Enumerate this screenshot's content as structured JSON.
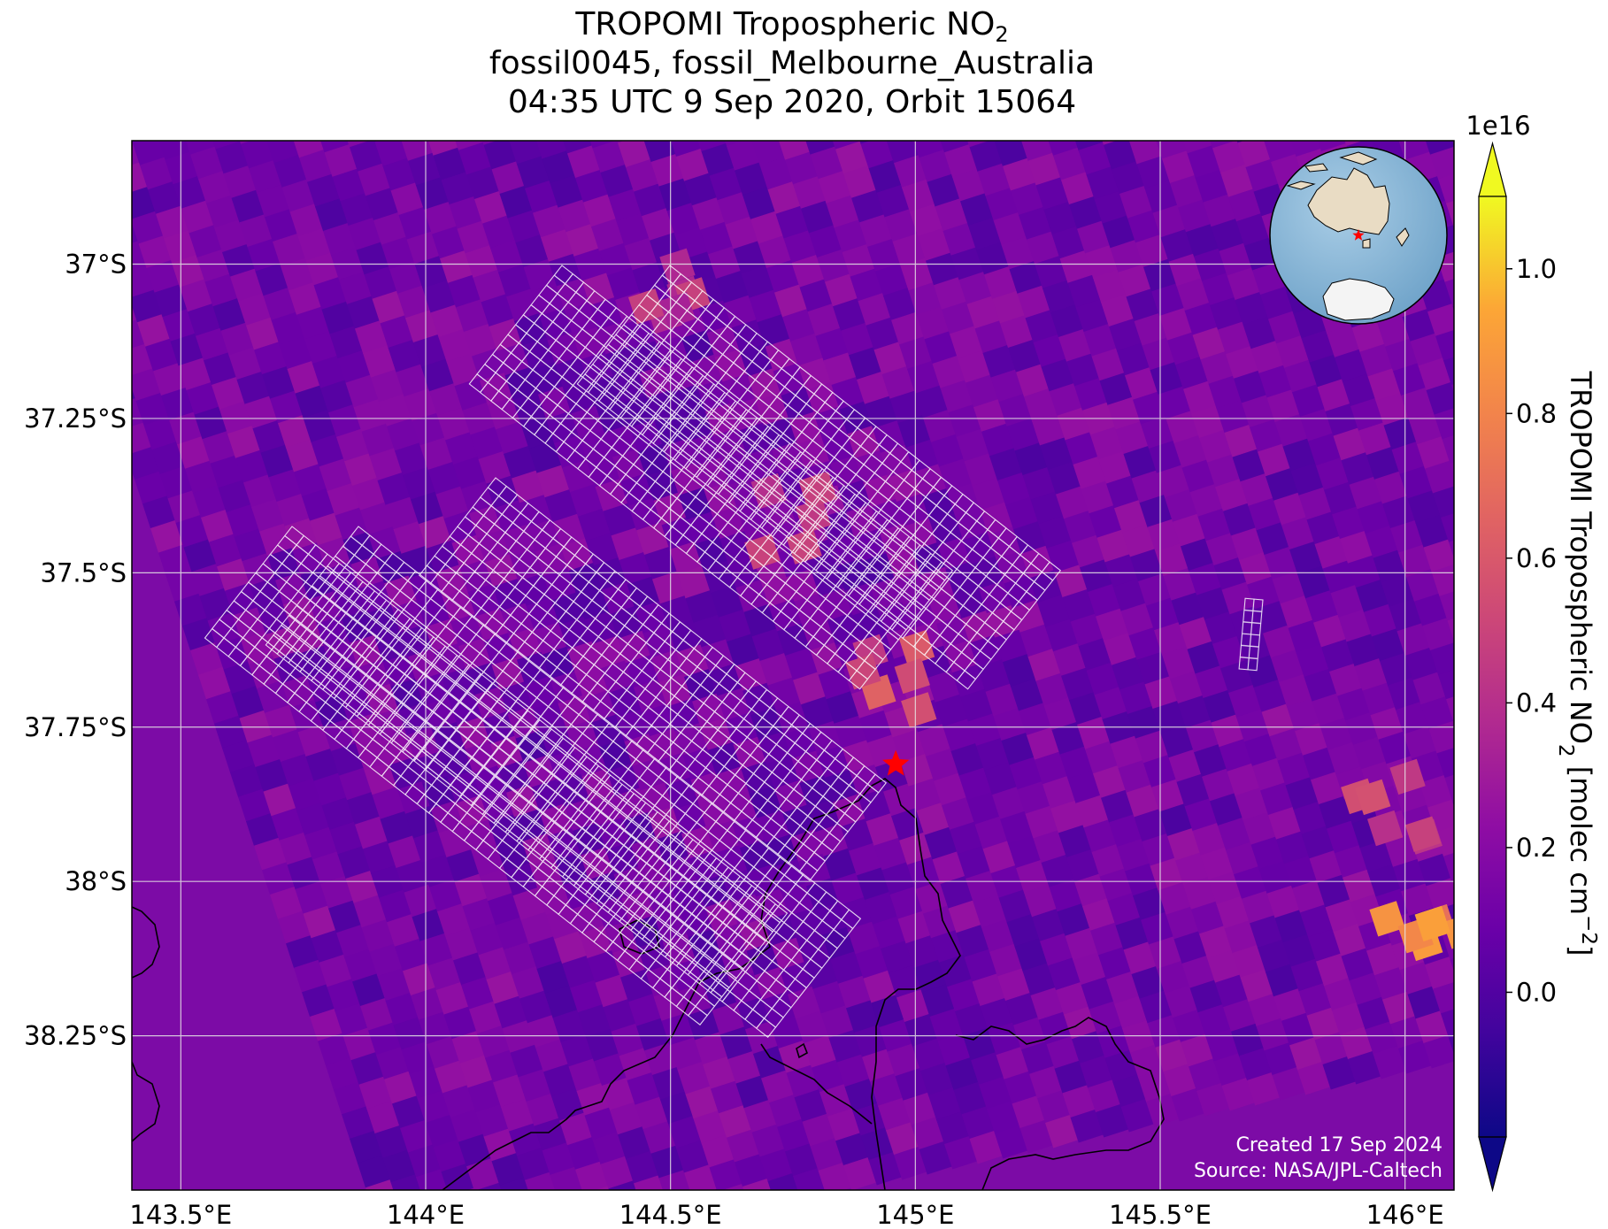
{
  "title": {
    "line1_main": "TROPOMI Tropospheric NO",
    "line1_sub": "2",
    "line2": "fossil0045, fossil_Melbourne_Australia",
    "line3": "04:35 UTC 9 Sep 2020, Orbit 15064"
  },
  "map": {
    "lon_range": [
      143.4,
      146.1
    ],
    "lat_range": [
      -38.5,
      -36.8
    ],
    "lon_ticks": [
      {
        "value": 143.5,
        "label": "143.5°E"
      },
      {
        "value": 144.0,
        "label": "144°E"
      },
      {
        "value": 144.5,
        "label": "144.5°E"
      },
      {
        "value": 145.0,
        "label": "145°E"
      },
      {
        "value": 145.5,
        "label": "145.5°E"
      },
      {
        "value": 146.0,
        "label": "146°E"
      }
    ],
    "lat_ticks": [
      {
        "value": -37.0,
        "label": "37°S"
      },
      {
        "value": -37.25,
        "label": "37.25°S"
      },
      {
        "value": -37.5,
        "label": "37.5°S"
      },
      {
        "value": -37.75,
        "label": "37.75°S"
      },
      {
        "value": -38.0,
        "label": "38°S"
      },
      {
        "value": -38.25,
        "label": "38.25°S"
      }
    ],
    "gridlines": true,
    "target": {
      "name": "fossil_Melbourne_Australia",
      "lon": 144.96,
      "lat": -37.81,
      "marker": "star",
      "color": "#ff0000"
    },
    "colormap": "plasma",
    "inset": "globe-locator"
  },
  "colorbar": {
    "label_main": "TROPOMI Tropospheric NO",
    "label_sub": "2",
    "label_units_pre": " [molec cm",
    "label_units_sup": "−2",
    "label_units_post": "]",
    "multiplier": "1e16",
    "range": [
      -0.2,
      1.1
    ],
    "ticks": [
      {
        "value": 0.0,
        "label": "0.0"
      },
      {
        "value": 0.2,
        "label": "0.2"
      },
      {
        "value": 0.4,
        "label": "0.4"
      },
      {
        "value": 0.6,
        "label": "0.6"
      },
      {
        "value": 0.8,
        "label": "0.8"
      },
      {
        "value": 1.0,
        "label": "1.0"
      }
    ],
    "extend": "both"
  },
  "credits": {
    "created": "Created 17 Sep 2024",
    "source": "Source: NASA/JPL-Caltech"
  },
  "chart_data": {
    "type": "heatmap",
    "title": "TROPOMI Tropospheric NO2 — fossil0045, fossil_Melbourne_Australia — 04:35 UTC 9 Sep 2020, Orbit 15064",
    "xlabel": "",
    "ylabel": "",
    "value_label": "TROPOMI Tropospheric NO2 [molec cm−2]",
    "value_scale": "1e16",
    "xlim": [
      143.4,
      146.1
    ],
    "ylim": [
      -38.5,
      -36.8
    ],
    "vlim": [
      -0.2,
      1.1
    ],
    "hotspots": [
      {
        "lon": 146.0,
        "lat": -38.05,
        "value": 0.95
      },
      {
        "lon": 145.95,
        "lat": -37.85,
        "value": 0.6
      },
      {
        "lon": 144.9,
        "lat": -37.65,
        "value": 0.65
      },
      {
        "lon": 144.7,
        "lat": -37.4,
        "value": 0.5
      },
      {
        "lon": 144.45,
        "lat": -37.05,
        "value": 0.5
      }
    ],
    "grid": true
  }
}
